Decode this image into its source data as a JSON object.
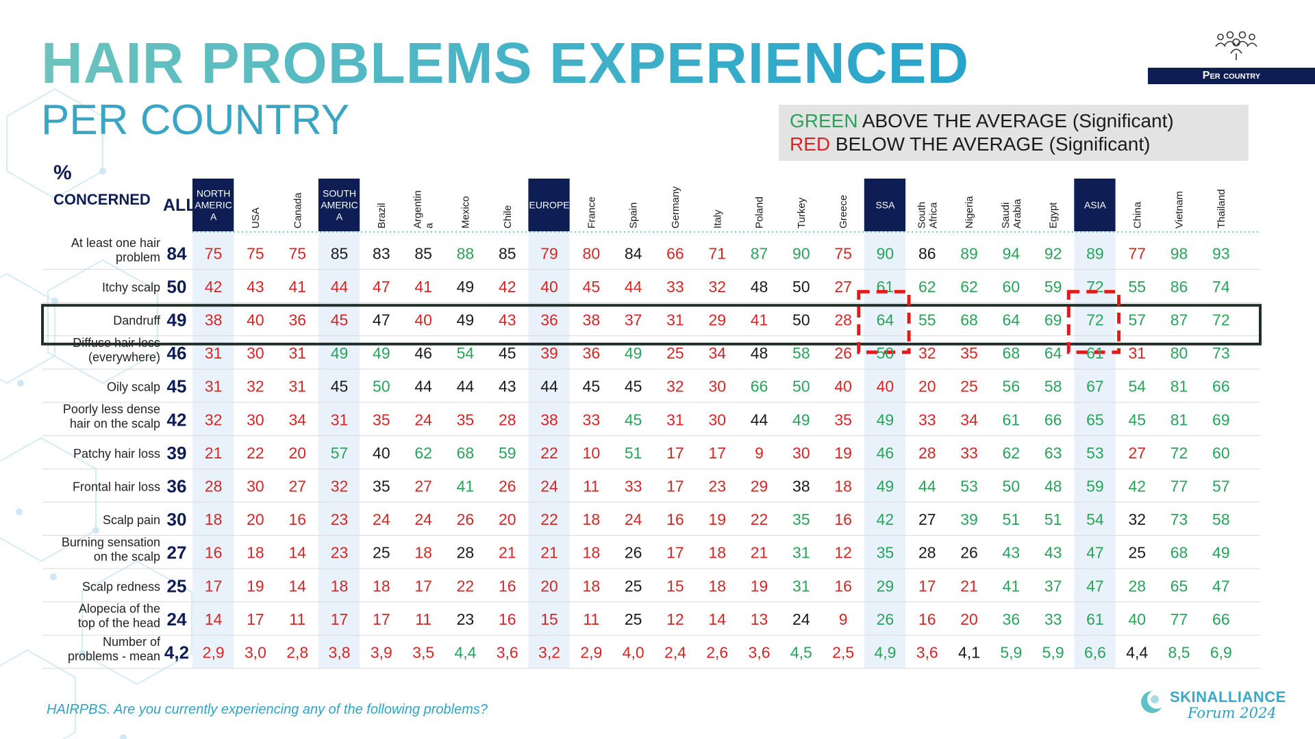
{
  "header": {
    "title": "HAIR PROBLEMS EXPERIENCED",
    "subtitle": "PER COUNTRY",
    "badge": "Per country",
    "people_icon": "people-group-icon"
  },
  "legend": {
    "line1_colored": "GREEN",
    "line1_rest": " ABOVE THE AVERAGE (Significant)",
    "line2_colored": "RED",
    "line2_rest": " BELOW THE AVERAGE (Significant)"
  },
  "table_header": {
    "pct": "%",
    "concerned": "CONCERNED",
    "all": "ALL"
  },
  "footnote": "HAIRPBS. Are you currently experiencing any of the following problems?",
  "logo": {
    "name": "SKINALLIANCE",
    "tagline": "Forum 2024",
    "icon": "skinalliance-logo-icon"
  },
  "colors": {
    "green": "#27a35a",
    "red": "#d62525",
    "black": "#1a1a1a",
    "navy": "#0e1e54",
    "region_shade": "#e9f2fb"
  },
  "chart_data": {
    "type": "table",
    "title": "HAIR PROBLEMS EXPERIENCED",
    "subtitle": "PER COUNTRY",
    "columns": [
      {
        "label": [
          "NORTH",
          "AMERIC",
          "A"
        ],
        "region": true
      },
      {
        "label": [
          "USA"
        ]
      },
      {
        "label": [
          "Canada"
        ]
      },
      {
        "label": [
          "SOUTH",
          "AMERIC",
          "A"
        ],
        "region": true
      },
      {
        "label": [
          "Brazil"
        ]
      },
      {
        "label": [
          "Argentin",
          "a"
        ]
      },
      {
        "label": [
          "Mexico"
        ]
      },
      {
        "label": [
          "Chile"
        ]
      },
      {
        "label": [
          "EUROPE"
        ],
        "region": true
      },
      {
        "label": [
          "France"
        ]
      },
      {
        "label": [
          "Spain"
        ]
      },
      {
        "label": [
          "Germany"
        ]
      },
      {
        "label": [
          "Italy"
        ]
      },
      {
        "label": [
          "Poland"
        ]
      },
      {
        "label": [
          "Turkey"
        ]
      },
      {
        "label": [
          "Greece"
        ]
      },
      {
        "label": [
          "SSA"
        ],
        "region": true
      },
      {
        "label": [
          "South",
          "Africa"
        ]
      },
      {
        "label": [
          "Nigeria"
        ]
      },
      {
        "label": [
          "Saudi",
          "Arabia"
        ]
      },
      {
        "label": [
          "Egypt"
        ]
      },
      {
        "label": [
          "ASIA"
        ],
        "region": true
      },
      {
        "label": [
          "China"
        ]
      },
      {
        "label": [
          "Vietnam"
        ]
      },
      {
        "label": [
          "Thailand"
        ]
      }
    ],
    "rows": [
      {
        "label": [
          "At least one hair",
          "problem"
        ],
        "all": "84",
        "values": [
          "75",
          "75",
          "75",
          "85",
          "83",
          "85",
          "88",
          "85",
          "79",
          "80",
          "84",
          "66",
          "71",
          "87",
          "90",
          "75",
          "90",
          "86",
          "89",
          "94",
          "92",
          "89",
          "77",
          "98",
          "93"
        ],
        "sig": [
          "r",
          "r",
          "r",
          "b",
          "b",
          "b",
          "g",
          "b",
          "r",
          "r",
          "b",
          "r",
          "r",
          "g",
          "g",
          "r",
          "g",
          "b",
          "g",
          "g",
          "g",
          "g",
          "r",
          "g",
          "g"
        ]
      },
      {
        "label": [
          "Itchy scalp"
        ],
        "all": "50",
        "values": [
          "42",
          "43",
          "41",
          "44",
          "47",
          "41",
          "49",
          "42",
          "40",
          "45",
          "44",
          "33",
          "32",
          "48",
          "50",
          "27",
          "61",
          "62",
          "62",
          "60",
          "59",
          "72",
          "55",
          "86",
          "74"
        ],
        "sig": [
          "r",
          "r",
          "r",
          "r",
          "r",
          "r",
          "b",
          "r",
          "r",
          "r",
          "r",
          "r",
          "r",
          "b",
          "b",
          "r",
          "g",
          "g",
          "g",
          "g",
          "g",
          "g",
          "g",
          "g",
          "g"
        ]
      },
      {
        "label": [
          "Dandruff"
        ],
        "all": "49",
        "highlight": true,
        "values": [
          "38",
          "40",
          "36",
          "45",
          "47",
          "40",
          "49",
          "43",
          "36",
          "38",
          "37",
          "31",
          "29",
          "41",
          "50",
          "28",
          "64",
          "55",
          "68",
          "64",
          "69",
          "72",
          "57",
          "87",
          "72"
        ],
        "sig": [
          "r",
          "r",
          "r",
          "r",
          "b",
          "r",
          "b",
          "r",
          "r",
          "r",
          "r",
          "r",
          "r",
          "r",
          "b",
          "r",
          "g",
          "g",
          "g",
          "g",
          "g",
          "g",
          "g",
          "g",
          "g"
        ]
      },
      {
        "label": [
          "Diffuse hair loss",
          "(everywhere)"
        ],
        "all": "46",
        "values": [
          "31",
          "30",
          "31",
          "49",
          "49",
          "46",
          "54",
          "45",
          "39",
          "36",
          "49",
          "25",
          "34",
          "48",
          "58",
          "26",
          "50",
          "32",
          "35",
          "68",
          "64",
          "61",
          "31",
          "80",
          "73"
        ],
        "sig": [
          "r",
          "r",
          "r",
          "g",
          "g",
          "b",
          "g",
          "b",
          "r",
          "r",
          "g",
          "r",
          "r",
          "b",
          "g",
          "r",
          "g",
          "r",
          "r",
          "g",
          "g",
          "g",
          "r",
          "g",
          "g"
        ]
      },
      {
        "label": [
          "Oily scalp"
        ],
        "all": "45",
        "values": [
          "31",
          "32",
          "31",
          "45",
          "50",
          "44",
          "44",
          "43",
          "44",
          "45",
          "45",
          "32",
          "30",
          "66",
          "50",
          "40",
          "40",
          "20",
          "25",
          "56",
          "58",
          "67",
          "54",
          "81",
          "66"
        ],
        "sig": [
          "r",
          "r",
          "r",
          "b",
          "g",
          "b",
          "b",
          "b",
          "b",
          "b",
          "b",
          "r",
          "r",
          "g",
          "g",
          "r",
          "r",
          "r",
          "r",
          "g",
          "g",
          "g",
          "g",
          "g",
          "g"
        ]
      },
      {
        "label": [
          "Poorly less dense",
          "hair on the scalp"
        ],
        "all": "42",
        "values": [
          "32",
          "30",
          "34",
          "31",
          "35",
          "24",
          "35",
          "28",
          "38",
          "33",
          "45",
          "31",
          "30",
          "44",
          "49",
          "35",
          "49",
          "33",
          "34",
          "61",
          "66",
          "65",
          "45",
          "81",
          "69"
        ],
        "sig": [
          "r",
          "r",
          "r",
          "r",
          "r",
          "r",
          "r",
          "r",
          "r",
          "r",
          "g",
          "r",
          "r",
          "b",
          "g",
          "r",
          "g",
          "r",
          "r",
          "g",
          "g",
          "g",
          "g",
          "g",
          "g"
        ]
      },
      {
        "label": [
          "Patchy hair loss"
        ],
        "all": "39",
        "values": [
          "21",
          "22",
          "20",
          "57",
          "40",
          "62",
          "68",
          "59",
          "22",
          "10",
          "51",
          "17",
          "17",
          "9",
          "30",
          "19",
          "46",
          "28",
          "33",
          "62",
          "63",
          "53",
          "27",
          "72",
          "60"
        ],
        "sig": [
          "r",
          "r",
          "r",
          "g",
          "b",
          "g",
          "g",
          "g",
          "r",
          "r",
          "g",
          "r",
          "r",
          "r",
          "r",
          "r",
          "g",
          "r",
          "r",
          "g",
          "g",
          "g",
          "r",
          "g",
          "g"
        ]
      },
      {
        "label": [
          "Frontal hair loss"
        ],
        "all": "36",
        "values": [
          "28",
          "30",
          "27",
          "32",
          "35",
          "27",
          "41",
          "26",
          "24",
          "11",
          "33",
          "17",
          "23",
          "29",
          "38",
          "18",
          "49",
          "44",
          "53",
          "50",
          "48",
          "59",
          "42",
          "77",
          "57"
        ],
        "sig": [
          "r",
          "r",
          "r",
          "r",
          "b",
          "r",
          "g",
          "r",
          "r",
          "r",
          "r",
          "r",
          "r",
          "r",
          "b",
          "r",
          "g",
          "g",
          "g",
          "g",
          "g",
          "g",
          "g",
          "g",
          "g"
        ]
      },
      {
        "label": [
          "Scalp pain"
        ],
        "all": "30",
        "values": [
          "18",
          "20",
          "16",
          "23",
          "24",
          "24",
          "26",
          "20",
          "22",
          "18",
          "24",
          "16",
          "19",
          "22",
          "35",
          "16",
          "42",
          "27",
          "39",
          "51",
          "51",
          "54",
          "32",
          "73",
          "58"
        ],
        "sig": [
          "r",
          "r",
          "r",
          "r",
          "r",
          "r",
          "r",
          "r",
          "r",
          "r",
          "r",
          "r",
          "r",
          "r",
          "g",
          "r",
          "g",
          "b",
          "g",
          "g",
          "g",
          "g",
          "b",
          "g",
          "g"
        ]
      },
      {
        "label": [
          "Burning sensation",
          "on the scalp"
        ],
        "all": "27",
        "values": [
          "16",
          "18",
          "14",
          "23",
          "25",
          "18",
          "28",
          "21",
          "21",
          "18",
          "26",
          "17",
          "18",
          "21",
          "31",
          "12",
          "35",
          "28",
          "26",
          "43",
          "43",
          "47",
          "25",
          "68",
          "49"
        ],
        "sig": [
          "r",
          "r",
          "r",
          "r",
          "b",
          "r",
          "b",
          "r",
          "r",
          "r",
          "b",
          "r",
          "r",
          "r",
          "g",
          "r",
          "g",
          "b",
          "b",
          "g",
          "g",
          "g",
          "b",
          "g",
          "g"
        ]
      },
      {
        "label": [
          "Scalp redness"
        ],
        "all": "25",
        "values": [
          "17",
          "19",
          "14",
          "18",
          "18",
          "17",
          "22",
          "16",
          "20",
          "18",
          "25",
          "15",
          "18",
          "19",
          "31",
          "16",
          "29",
          "17",
          "21",
          "41",
          "37",
          "47",
          "28",
          "65",
          "47"
        ],
        "sig": [
          "r",
          "r",
          "r",
          "r",
          "r",
          "r",
          "r",
          "r",
          "r",
          "r",
          "b",
          "r",
          "r",
          "r",
          "g",
          "r",
          "g",
          "r",
          "r",
          "g",
          "g",
          "g",
          "g",
          "g",
          "g"
        ]
      },
      {
        "label": [
          "Alopecia of the",
          "top of the head"
        ],
        "all": "24",
        "values": [
          "14",
          "17",
          "11",
          "17",
          "17",
          "11",
          "23",
          "16",
          "15",
          "11",
          "25",
          "12",
          "14",
          "13",
          "24",
          "9",
          "26",
          "16",
          "20",
          "36",
          "33",
          "61",
          "40",
          "77",
          "66"
        ],
        "sig": [
          "r",
          "r",
          "r",
          "r",
          "r",
          "r",
          "b",
          "r",
          "r",
          "r",
          "b",
          "r",
          "r",
          "r",
          "b",
          "r",
          "g",
          "r",
          "r",
          "g",
          "g",
          "g",
          "g",
          "g",
          "g"
        ]
      },
      {
        "label": [
          "Number of",
          "problems - mean"
        ],
        "all": "4,2",
        "values": [
          "2,9",
          "3,0",
          "2,8",
          "3,8",
          "3,9",
          "3,5",
          "4,4",
          "3,6",
          "3,2",
          "2,9",
          "4,0",
          "2,4",
          "2,6",
          "3,6",
          "4,5",
          "2,5",
          "4,9",
          "3,6",
          "4,1",
          "5,9",
          "5,9",
          "6,6",
          "4,4",
          "8,5",
          "6,9"
        ],
        "sig": [
          "r",
          "r",
          "r",
          "r",
          "r",
          "r",
          "g",
          "r",
          "r",
          "r",
          "r",
          "r",
          "r",
          "r",
          "g",
          "r",
          "g",
          "r",
          "b",
          "g",
          "g",
          "g",
          "b",
          "g",
          "g"
        ]
      }
    ],
    "highlighted_cells": [
      {
        "row": "Dandruff",
        "column": "SSA"
      },
      {
        "row": "Dandruff",
        "column": "ASIA"
      }
    ]
  }
}
